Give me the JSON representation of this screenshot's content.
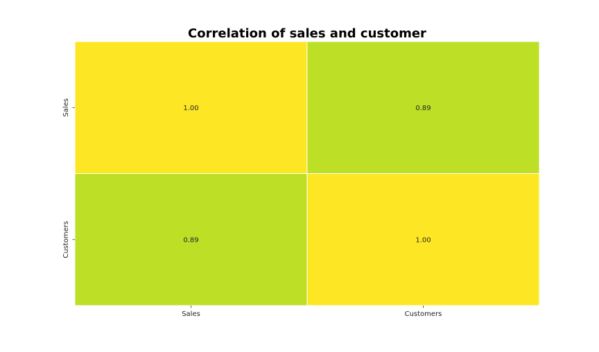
{
  "chart_data": {
    "type": "heatmap",
    "title": "Correlation of sales and customer",
    "xlabel": "",
    "ylabel": "",
    "x_categories": [
      "Sales",
      "Customers"
    ],
    "y_categories": [
      "Sales",
      "Customers"
    ],
    "values": [
      [
        1.0,
        0.89
      ],
      [
        0.89,
        1.0
      ]
    ],
    "value_labels": [
      [
        "1.00",
        "0.89"
      ],
      [
        "0.89",
        "1.00"
      ]
    ],
    "cell_colors": [
      [
        "#fde725",
        "#bddf26"
      ],
      [
        "#bddf26",
        "#fde725"
      ]
    ],
    "colorbar": false
  }
}
